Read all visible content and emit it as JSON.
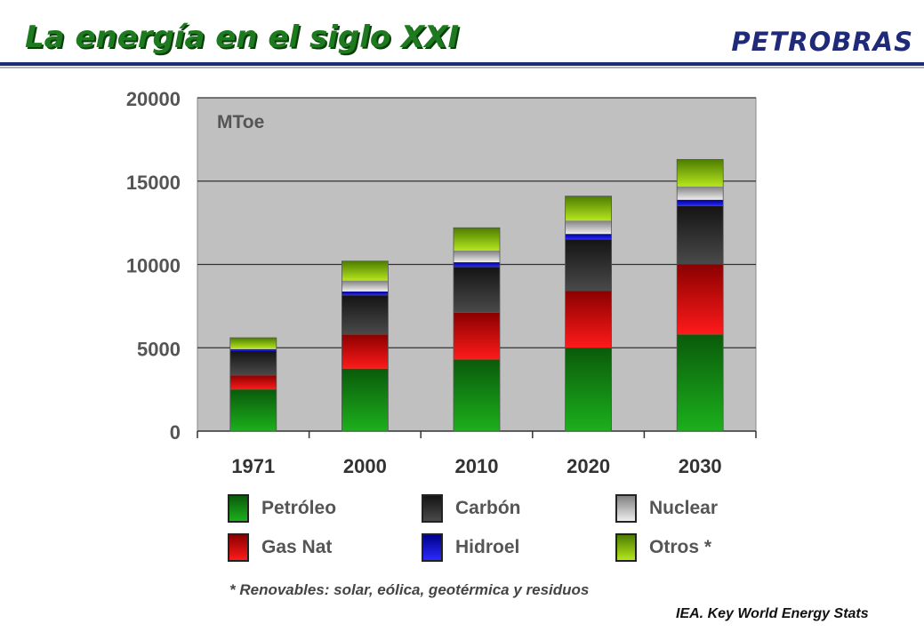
{
  "header": {
    "title": "La energía en el siglo XXI",
    "brand": "PETROBRAS"
  },
  "colors": {
    "Petróleo": [
      "#0a5a0a",
      "#1cb01c"
    ],
    "Gas Nat": [
      "#8b0000",
      "#ff1a1a"
    ],
    "Carbón": [
      "#141414",
      "#4a4a4a"
    ],
    "Hidroel": [
      "#00008b",
      "#2a2aff"
    ],
    "Nuclear": [
      "#808080",
      "#eeeeee"
    ],
    "Otros *": [
      "#4d7d00",
      "#b5e61d"
    ]
  },
  "chart_data": {
    "type": "bar",
    "stacked": true,
    "unit_label": "MToe",
    "categories": [
      "1971",
      "2000",
      "2010",
      "2020",
      "2030"
    ],
    "ylim": [
      0,
      20000
    ],
    "yticks": [
      "0",
      "5000",
      "10000",
      "15000",
      "20000"
    ],
    "grid": true,
    "series": [
      {
        "name": "Petróleo",
        "values": [
          2500,
          3750,
          4300,
          5000,
          5800
        ]
      },
      {
        "name": "Gas Nat",
        "values": [
          850,
          2050,
          2800,
          3400,
          4200
        ]
      },
      {
        "name": "Carbón",
        "values": [
          1450,
          2350,
          2750,
          3100,
          3500
        ]
      },
      {
        "name": "Hidroel",
        "values": [
          110,
          230,
          280,
          330,
          380
        ]
      },
      {
        "name": "Nuclear",
        "values": [
          40,
          650,
          700,
          800,
          800
        ]
      },
      {
        "name": "Otros *",
        "values": [
          650,
          1170,
          1370,
          1470,
          1620
        ]
      }
    ]
  },
  "legend_layout": [
    {
      "label": "Petróleo",
      "col": 0,
      "row": 0
    },
    {
      "label": "Gas Nat",
      "col": 0,
      "row": 1
    },
    {
      "label": "Carbón",
      "col": 1,
      "row": 0
    },
    {
      "label": "Hidroel",
      "col": 1,
      "row": 1
    },
    {
      "label": "Nuclear",
      "col": 2,
      "row": 0
    },
    {
      "label": "Otros *",
      "col": 2,
      "row": 1
    }
  ],
  "footnote": "* Renovables: solar, eólica, geotérmica y residuos",
  "source": "IEA. Key World Energy Stats"
}
